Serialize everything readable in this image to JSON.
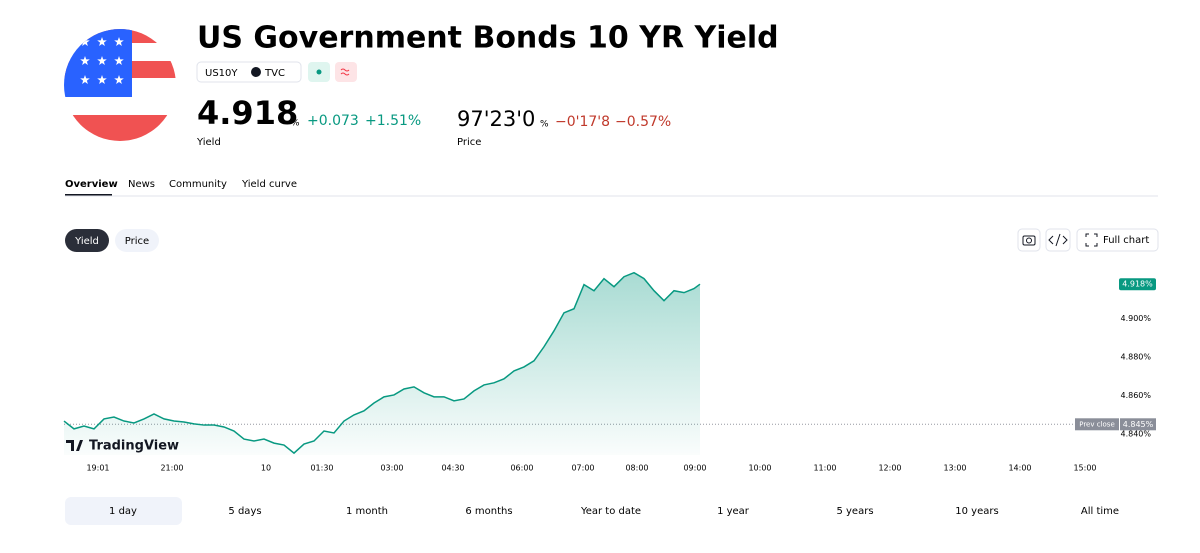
{
  "header": {
    "title": "US Government Bonds 10 YR Yield",
    "symbol": "US10Y",
    "exchange": "TVC"
  },
  "quote": {
    "yield": "4.918",
    "yield_unit": "%",
    "yield_change": "+0.073",
    "yield_change_pct": "+1.51%",
    "yield_label": "Yield",
    "price": "97'23'0",
    "price_unit": "%",
    "price_change": "−0'17'8",
    "price_change_pct": "−0.57%",
    "price_label": "Price"
  },
  "tabs": [
    "Overview",
    "News",
    "Community",
    "Yield curve"
  ],
  "chart_toggle": [
    "Yield",
    "Price"
  ],
  "toolbar": {
    "full_chart": "Full chart"
  },
  "chart_data": {
    "type": "line",
    "watermark": "TradingView",
    "color": "#089981",
    "x": [
      0,
      1,
      2,
      3,
      4,
      5,
      6,
      7,
      8,
      9,
      10,
      11,
      12,
      13,
      14,
      15,
      16,
      17,
      18,
      19,
      20,
      21,
      22,
      23,
      24,
      25,
      26,
      27,
      28,
      29,
      30,
      31,
      32,
      33,
      34,
      35,
      36,
      37,
      38,
      39,
      40,
      41,
      42,
      43,
      44,
      45,
      46,
      47,
      48,
      49,
      50,
      51,
      52,
      53,
      54,
      55,
      56,
      57,
      58,
      59,
      60,
      61,
      62,
      63,
      63.6
    ],
    "values": [
      4.8467,
      4.8426,
      4.8441,
      4.8426,
      4.8478,
      4.8488,
      4.8467,
      4.8457,
      4.8478,
      4.8504,
      4.8478,
      4.8467,
      4.8462,
      4.8452,
      4.8446,
      4.8446,
      4.8436,
      4.8415,
      4.8373,
      4.8363,
      4.8373,
      4.8352,
      4.8342,
      4.83,
      4.8347,
      4.8363,
      4.8415,
      4.8405,
      4.8467,
      4.8499,
      4.852,
      4.8561,
      4.8593,
      4.8603,
      4.8634,
      4.8645,
      4.8614,
      4.8593,
      4.8593,
      4.8572,
      4.8582,
      4.8624,
      4.8655,
      4.8666,
      4.8687,
      4.8728,
      4.8749,
      4.8781,
      4.8854,
      4.8937,
      4.9031,
      4.9052,
      4.9178,
      4.9146,
      4.9209,
      4.9167,
      4.9219,
      4.924,
      4.9209,
      4.9146,
      4.9094,
      4.9146,
      4.9136,
      4.9157,
      4.918
    ],
    "last_label": "4.918%",
    "xlim": [
      0,
      103.6
    ],
    "xticks": [
      {
        "value": 3.4,
        "label": "19:01"
      },
      {
        "value": 10.8,
        "label": "21:00"
      },
      {
        "value": 20.2,
        "label": "10"
      },
      {
        "value": 25.8,
        "label": "01:30"
      },
      {
        "value": 32.8,
        "label": "03:00"
      },
      {
        "value": 38.9,
        "label": "04:30"
      },
      {
        "value": 45.8,
        "label": "06:00"
      },
      {
        "value": 51.9,
        "label": "07:00"
      },
      {
        "value": 57.3,
        "label": "08:00"
      },
      {
        "value": 63.1,
        "label": "09:00"
      },
      {
        "value": 69.6,
        "label": "10:00"
      },
      {
        "value": 76.1,
        "label": "11:00"
      },
      {
        "value": 82.6,
        "label": "12:00"
      },
      {
        "value": 89.1,
        "label": "13:00"
      },
      {
        "value": 95.6,
        "label": "14:00"
      },
      {
        "value": 102.1,
        "label": "15:00"
      }
    ],
    "ylim": [
      4.829,
      4.928
    ],
    "yticks": [
      {
        "value": 4.84,
        "label": "4.840%"
      },
      {
        "value": 4.86,
        "label": "4.860%"
      },
      {
        "value": 4.88,
        "label": "4.880%"
      },
      {
        "value": 4.9,
        "label": "4.900%"
      }
    ],
    "reference_lines": [
      {
        "name": "Prev close",
        "value": 4.845,
        "label": "4.845%"
      }
    ]
  },
  "ranges": [
    "1 day",
    "5 days",
    "1 month",
    "6 months",
    "Year to date",
    "1 year",
    "5 years",
    "10 years",
    "All time"
  ]
}
